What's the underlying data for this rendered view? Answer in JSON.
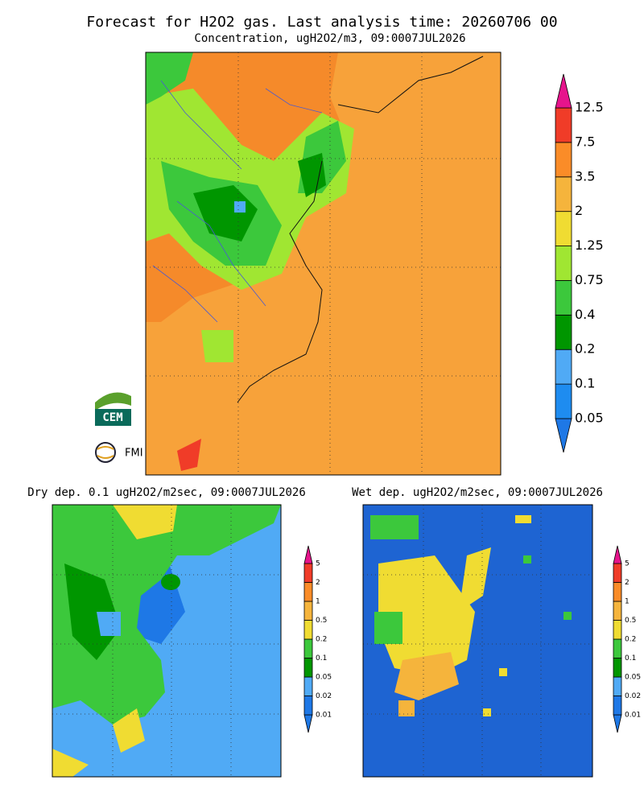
{
  "header": {
    "title": "Forecast for H2O2 gas. Last analysis time: 20260706 00",
    "subtitle": "Concentration, ugH2O2/m3, 09:0007JUL2026"
  },
  "main_panel": {
    "colorbar": {
      "labels": [
        "0.05",
        "0.1",
        "0.2",
        "0.4",
        "0.75",
        "1.25",
        "2",
        "3.5",
        "7.5",
        "12.5"
      ],
      "colors": [
        "#1e78e6",
        "#1e8cf0",
        "#50aaf5",
        "#009600",
        "#3cc83c",
        "#a0e632",
        "#f0dc32",
        "#f5b43c",
        "#fa8c28",
        "#f03c28",
        "#e6148c"
      ]
    }
  },
  "dry_panel": {
    "title": "Dry dep. 0.1 ugH2O2/m2sec, 09:0007JUL2026",
    "colorbar": {
      "labels": [
        "0.01",
        "0.02",
        "0.05",
        "0.1",
        "0.2",
        "0.5",
        "1",
        "2",
        "5"
      ],
      "colors": [
        "#1e78e6",
        "#1e78e6",
        "#50aaf5",
        "#009600",
        "#3cc83c",
        "#f0dc32",
        "#f5b43c",
        "#fa8c28",
        "#f03c28",
        "#e6148c"
      ]
    }
  },
  "wet_panel": {
    "title": "Wet dep. ugH2O2/m2sec, 09:0007JUL2026",
    "colorbar": {
      "labels": [
        "0.01",
        "0.02",
        "0.05",
        "0.1",
        "0.2",
        "0.5",
        "1",
        "2",
        "5"
      ],
      "colors": [
        "#1e78e6",
        "#1e78e6",
        "#50aaf5",
        "#009600",
        "#3cc83c",
        "#f0dc32",
        "#f5b43c",
        "#fa8c28",
        "#f03c28",
        "#e6148c"
      ]
    }
  },
  "logos": {
    "cem": "CEM",
    "fmi": "FMI"
  }
}
